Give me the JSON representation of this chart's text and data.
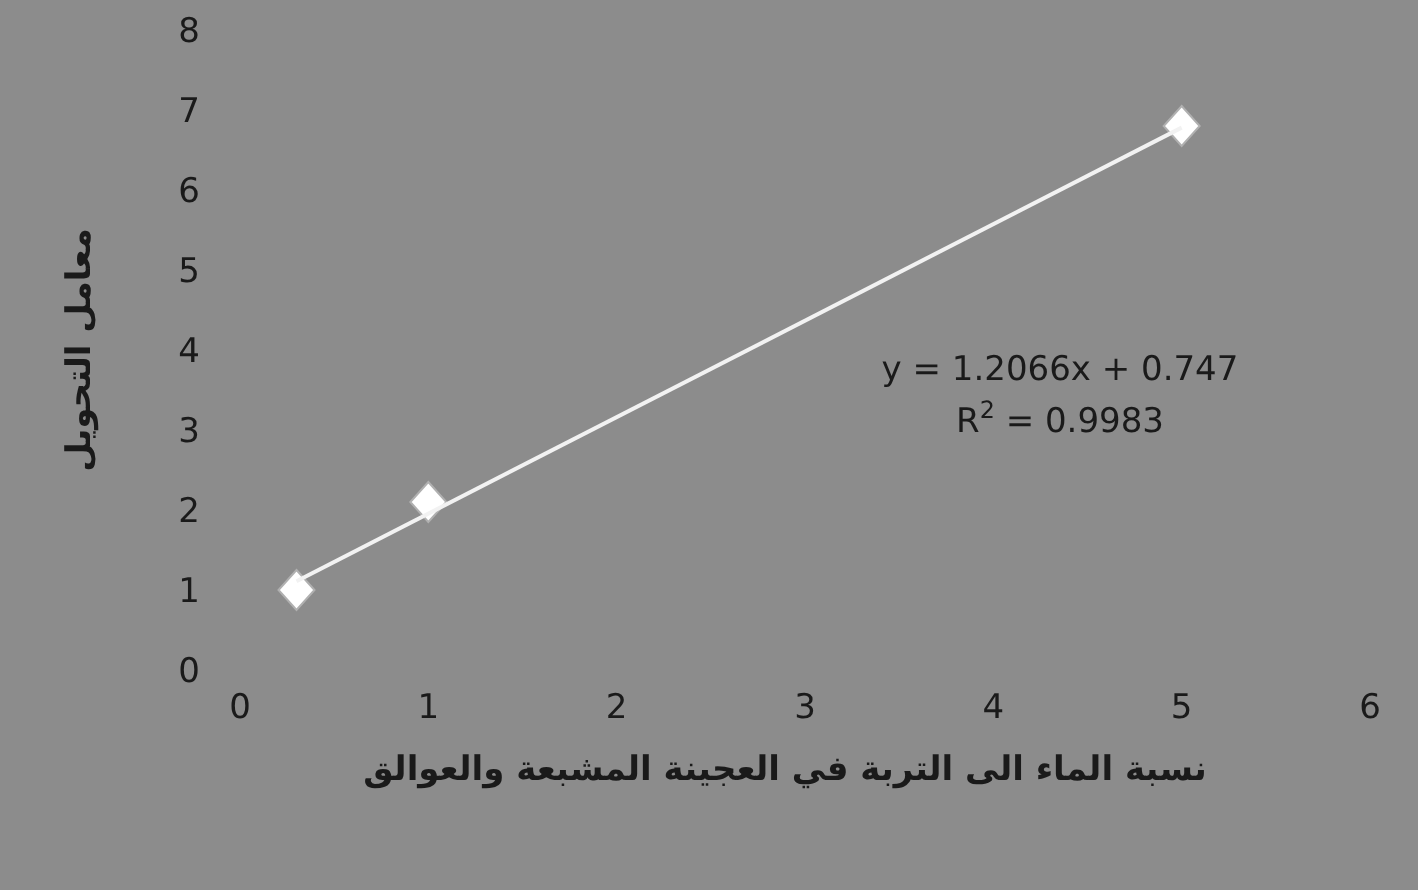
{
  "chart_data": {
    "type": "scatter",
    "xlabel": "نسبة الماء الى التربة في العجينة المشبعة والعوالق",
    "ylabel": "معامل التحويل",
    "xlim": [
      0,
      6
    ],
    "xticks": [
      0,
      1,
      2,
      3,
      4,
      5,
      6
    ],
    "ylim": [
      0,
      8
    ],
    "yticks": [
      0,
      1,
      2,
      3,
      4,
      5,
      6,
      7,
      8
    ],
    "grid": false,
    "series": [
      {
        "color": "#ffffff",
        "marker": "diamond",
        "x": [
          0.3,
          1,
          5
        ],
        "values": [
          1,
          2.1,
          6.8
        ]
      },
      {
        "type": "line",
        "color": "#f2f2f2",
        "marker": "none",
        "x": [
          0.3,
          5
        ],
        "values": [
          1.11,
          6.78
        ]
      }
    ],
    "annotations": [
      "y = 1.2066x + 0.747",
      "R$^{2}$ = 0.9983"
    ]
  }
}
